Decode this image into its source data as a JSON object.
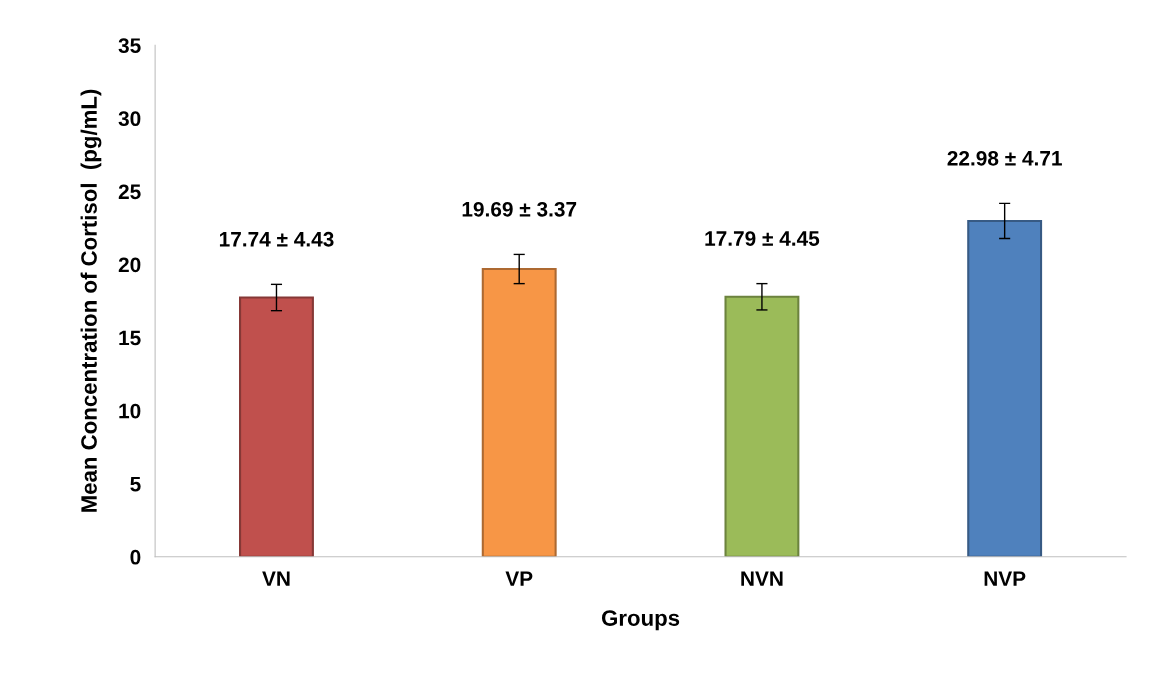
{
  "chart_data": {
    "type": "bar",
    "xlabel": "Groups",
    "ylabel": "Mean Concentration of Cortisol  (pg/mL)",
    "categories": [
      "VN",
      "VP",
      "NVN",
      "NVP"
    ],
    "values": [
      17.74,
      19.69,
      17.79,
      22.98
    ],
    "colors": [
      "#c0504d",
      "#f79646",
      "#9bbb59",
      "#4f81bd"
    ],
    "errors": [
      0.9,
      1.0,
      0.9,
      1.2
    ],
    "value_labels": [
      "17.74 ± 4.43",
      "19.69 ± 3.37",
      "17.79 ± 4.45",
      "22.98 ± 4.71"
    ],
    "ylim": [
      0,
      35
    ],
    "yticks": [
      0,
      5,
      10,
      15,
      20,
      25,
      30,
      35
    ],
    "grid": false,
    "legend": false
  }
}
